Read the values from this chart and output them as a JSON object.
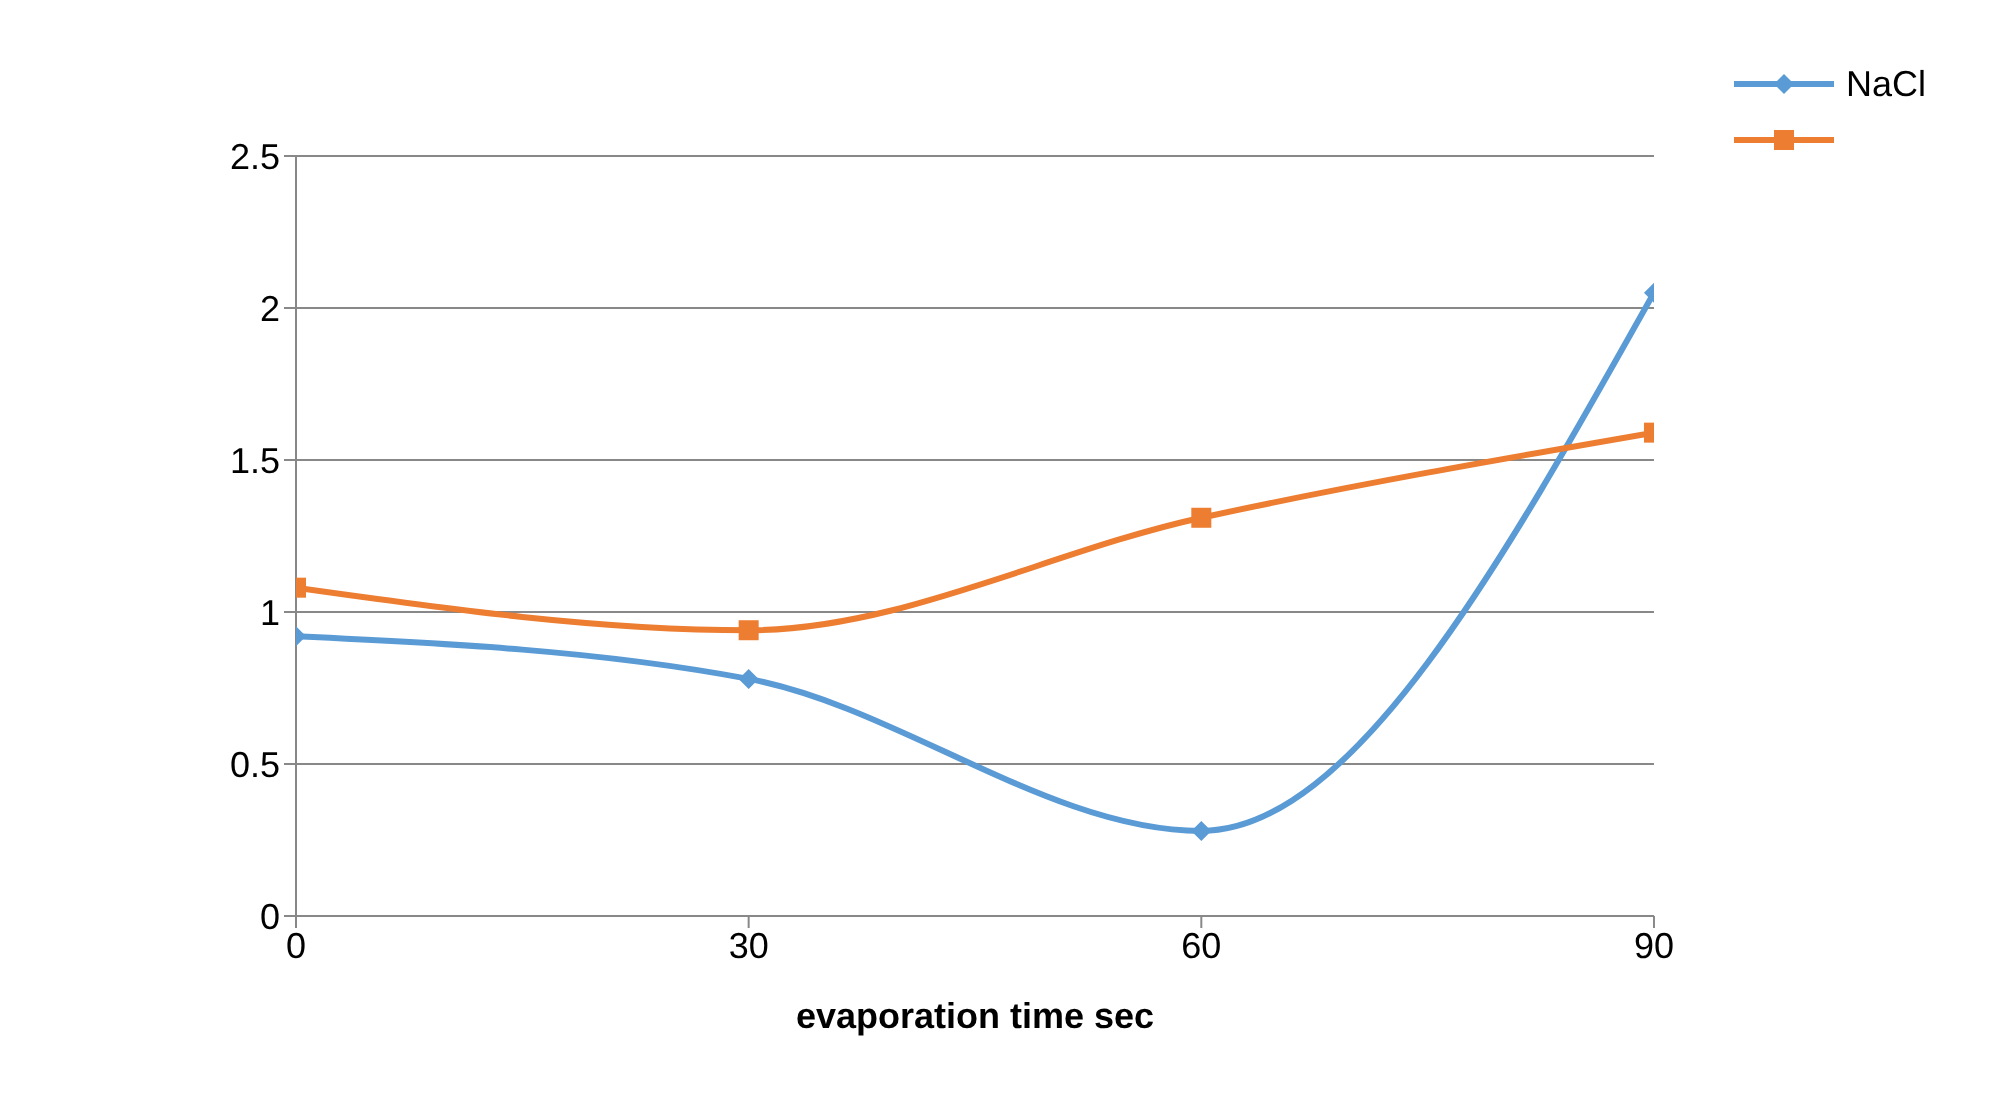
{
  "chart_data": {
    "type": "line",
    "xlabel": "evaporation time sec",
    "x": [
      0,
      30,
      60,
      90
    ],
    "xlim": [
      0,
      90
    ],
    "xticks": [
      0,
      30,
      60,
      90
    ],
    "ylim": [
      0,
      2.5
    ],
    "yticks": [
      0,
      0.5,
      1,
      1.5,
      2,
      2.5
    ],
    "grid": "y",
    "legend": "top right",
    "line_style": "solid",
    "series": [
      {
        "name": "NaCl",
        "color": "#5b9bd5",
        "marker": "diamond",
        "values": [
          0.92,
          0.78,
          0.28,
          2.05
        ]
      },
      {
        "color": "#ed7d31",
        "marker": "square",
        "values": [
          1.08,
          0.94,
          1.31,
          1.59
        ]
      }
    ]
  }
}
